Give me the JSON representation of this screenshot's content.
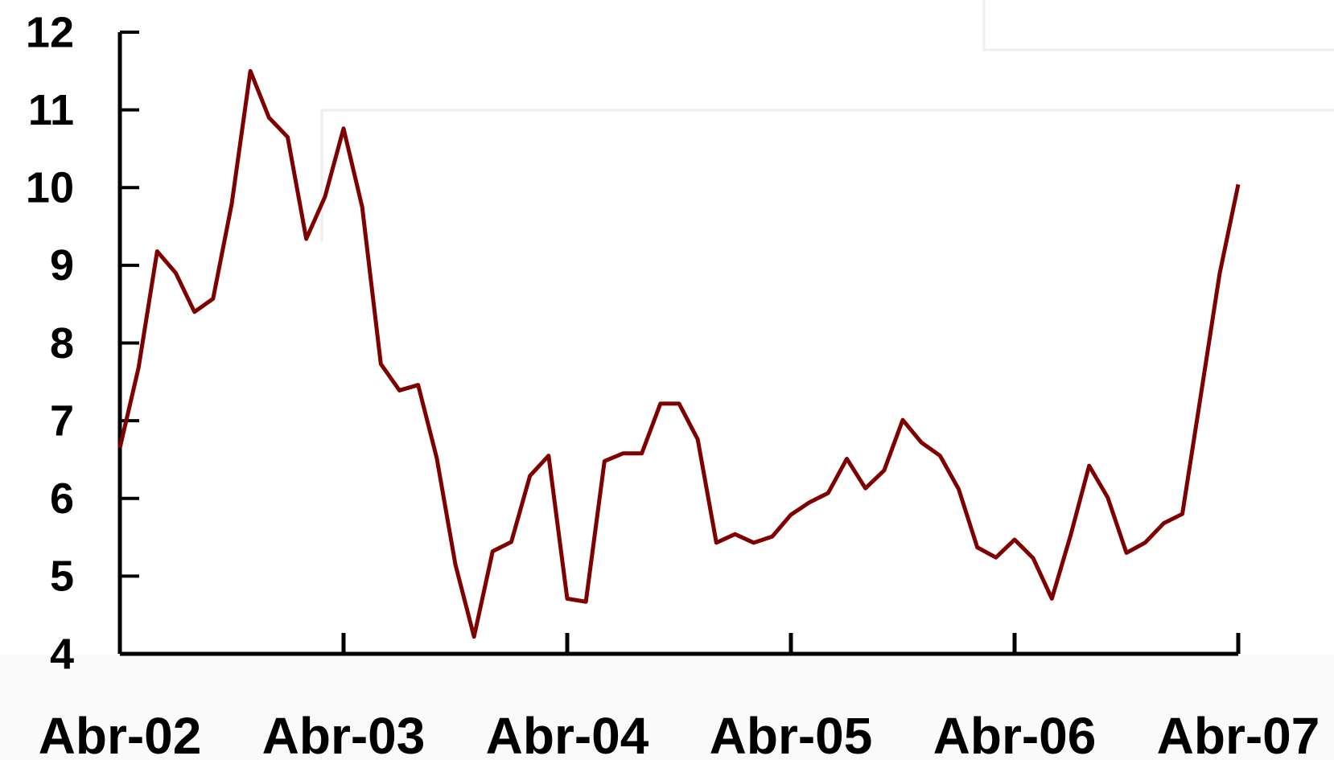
{
  "chart_data": {
    "type": "line",
    "categories": [
      "Abr-02",
      null,
      null,
      null,
      null,
      null,
      null,
      null,
      null,
      null,
      null,
      null,
      "Abr-03",
      null,
      null,
      null,
      null,
      null,
      null,
      null,
      null,
      null,
      null,
      null,
      "Abr-04",
      null,
      null,
      null,
      null,
      null,
      null,
      null,
      null,
      null,
      null,
      null,
      "Abr-05",
      null,
      null,
      null,
      null,
      null,
      null,
      null,
      null,
      null,
      null,
      null,
      "Abr-06",
      null,
      null,
      null,
      null,
      null,
      null,
      null,
      null,
      null,
      null,
      null,
      "Abr-07"
    ],
    "series": [
      {
        "color": "#7f0000",
        "values": [
          6.65,
          7.68,
          9.18,
          8.9,
          8.4,
          8.57,
          9.79,
          11.5,
          10.9,
          10.65,
          9.34,
          9.88,
          10.76,
          9.75,
          7.73,
          7.39,
          7.46,
          6.52,
          5.15,
          4.22,
          5.32,
          5.44,
          6.29,
          6.55,
          4.71,
          4.67,
          6.48,
          6.58,
          6.58,
          7.22,
          7.22,
          6.76,
          5.43,
          5.54,
          5.43,
          5.51,
          5.79,
          5.95,
          6.07,
          6.51,
          6.13,
          6.36,
          7.01,
          6.72,
          6.55,
          6.12,
          5.37,
          5.24,
          5.47,
          5.23,
          4.71,
          5.52,
          6.42,
          6.01,
          5.3,
          5.43,
          5.68,
          5.8,
          7.34,
          8.89,
          10.04
        ]
      }
    ],
    "ylim": [
      4,
      12
    ],
    "yticks": [
      4,
      5,
      6,
      7,
      8,
      9,
      10,
      11,
      12
    ],
    "grid": false
  }
}
